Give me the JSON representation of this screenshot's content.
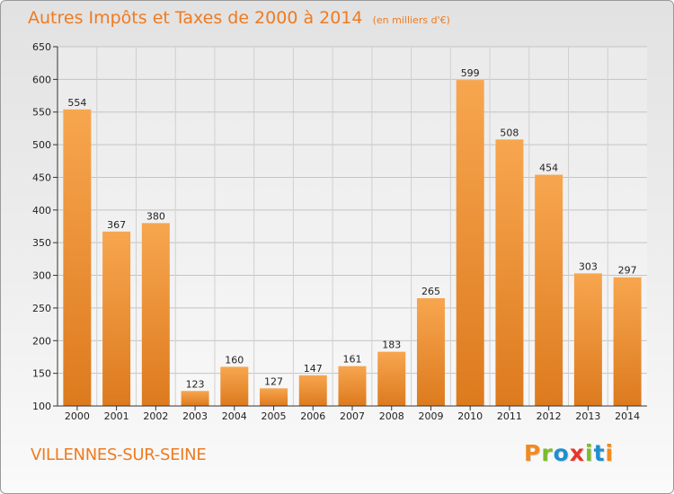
{
  "chart_data": {
    "type": "bar",
    "title": "Autres Impôts et Taxes de 2000 à 2014",
    "subtitle": "(en milliers d'€)",
    "categories": [
      "2000",
      "2001",
      "2002",
      "2003",
      "2004",
      "2005",
      "2006",
      "2007",
      "2008",
      "2009",
      "2010",
      "2011",
      "2012",
      "2013",
      "2014"
    ],
    "values": [
      554,
      367,
      380,
      123,
      160,
      127,
      147,
      161,
      183,
      265,
      599,
      508,
      454,
      303,
      297
    ],
    "ylim": [
      100,
      650
    ],
    "yticks": [
      100,
      150,
      200,
      250,
      300,
      350,
      400,
      450,
      500,
      550,
      600,
      650
    ],
    "grid": true,
    "data_labels": true
  },
  "footer": {
    "town": "VILLENNES-SUR-SEINE",
    "logo_text": "Proxiti"
  },
  "colors": {
    "bar_light": "#f7a64f",
    "bar_dark": "#dd7a1e",
    "title": "#ee7b21",
    "logo": [
      "#f28a1e",
      "#7dbb2a",
      "#1f8ecf",
      "#e8342a",
      "#7dbb2a",
      "#1f8ecf",
      "#f28a1e"
    ]
  }
}
